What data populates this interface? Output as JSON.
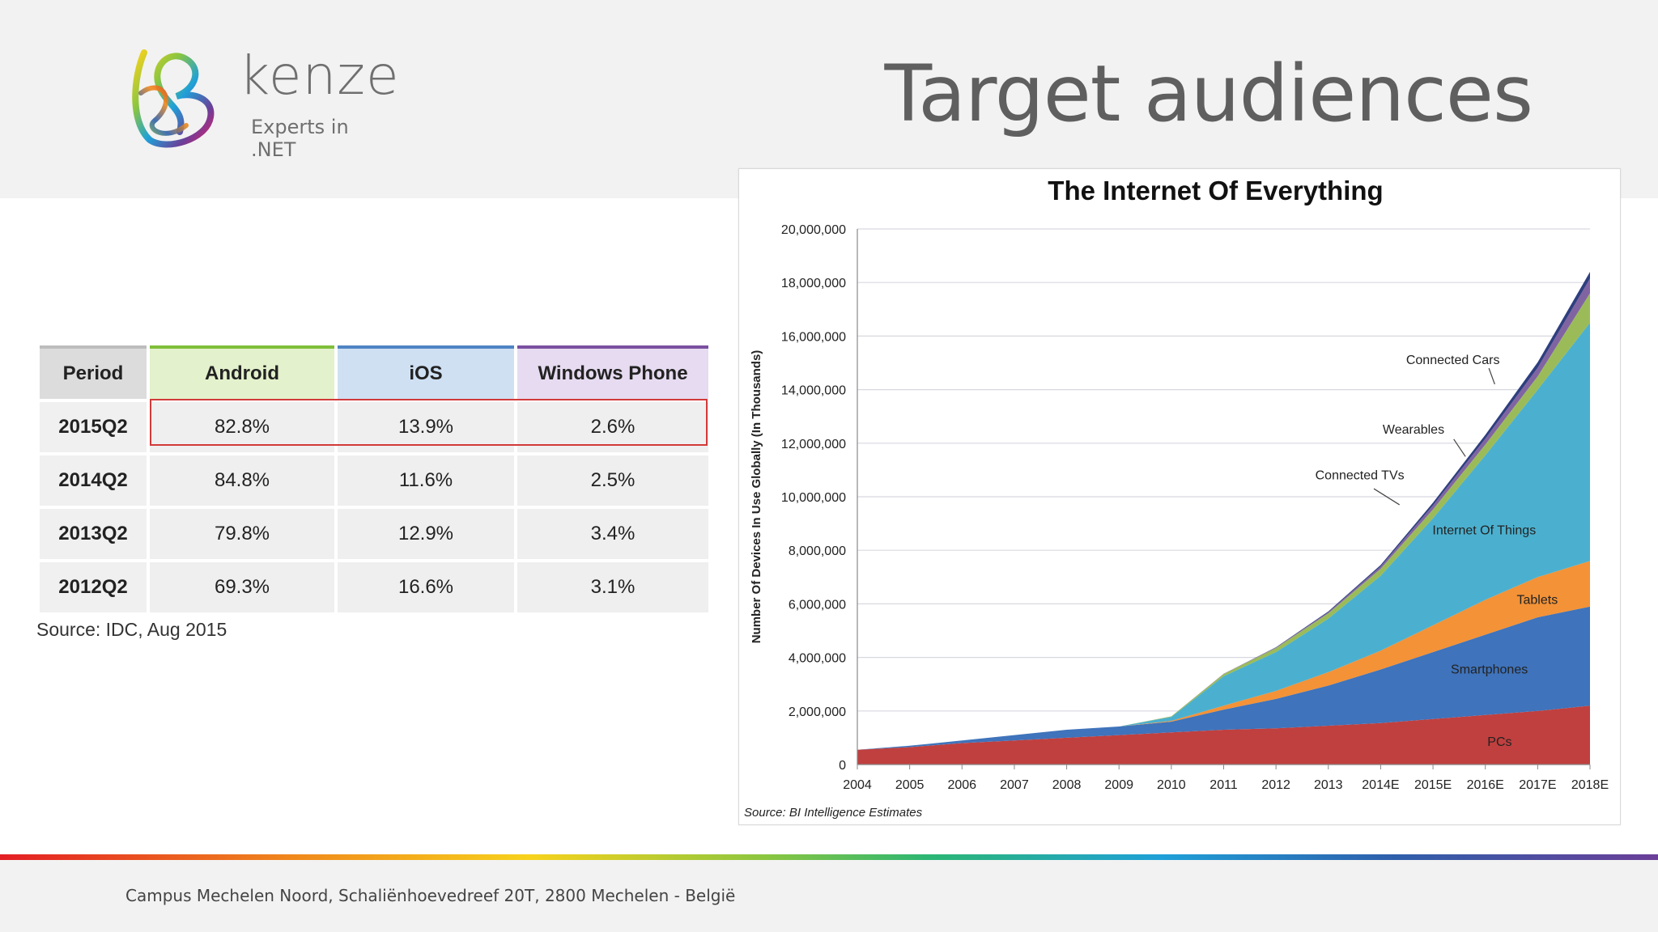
{
  "logo": {
    "word": "kenze",
    "tagline": "Experts in .NET"
  },
  "slide_title": "Target audiences",
  "table": {
    "headers": [
      "Period",
      "Android",
      "iOS",
      "Windows Phone"
    ],
    "rows": [
      [
        "2015Q2",
        "82.8%",
        "13.9%",
        "2.6%"
      ],
      [
        "2014Q2",
        "84.8%",
        "11.6%",
        "2.5%"
      ],
      [
        "2013Q2",
        "79.8%",
        "12.9%",
        "3.4%"
      ],
      [
        "2012Q2",
        "69.3%",
        "16.6%",
        "3.1%"
      ]
    ],
    "source": "Source: IDC, Aug 2015"
  },
  "chart_data": {
    "type": "area",
    "stacked": true,
    "title": "The Internet Of Everything",
    "ylabel": "Number Of Devices In Use Globally (In Thousands)",
    "xlabel": "",
    "source": "Source: BI Intelligence Estimates",
    "categories": [
      "2004",
      "2005",
      "2006",
      "2007",
      "2008",
      "2009",
      "2010",
      "2011",
      "2012",
      "2013",
      "2014E",
      "2015E",
      "2016E",
      "2017E",
      "2018E"
    ],
    "ylim": [
      0,
      20000000
    ],
    "yticks": [
      0,
      2000000,
      4000000,
      6000000,
      8000000,
      10000000,
      12000000,
      14000000,
      16000000,
      18000000,
      20000000
    ],
    "ytick_labels": [
      "0",
      "2,000,000",
      "4,000,000",
      "6,000,000",
      "8,000,000",
      "10,000,000",
      "12,000,000",
      "14,000,000",
      "16,000,000",
      "18,000,000",
      "20,000,000"
    ],
    "grid": true,
    "series": [
      {
        "name": "PCs",
        "color": "#c0403f",
        "values": [
          550000,
          650000,
          800000,
          900000,
          1000000,
          1100000,
          1200000,
          1300000,
          1350000,
          1450000,
          1550000,
          1700000,
          1850000,
          2000000,
          2200000
        ]
      },
      {
        "name": "Smartphones",
        "color": "#3f73bb",
        "values": [
          0,
          50000,
          100000,
          200000,
          300000,
          320000,
          400000,
          750000,
          1100000,
          1500000,
          2000000,
          2500000,
          3000000,
          3500000,
          3700000
        ]
      },
      {
        "name": "Tablets",
        "color": "#f39237",
        "values": [
          0,
          0,
          0,
          0,
          0,
          0,
          30000,
          150000,
          300000,
          500000,
          700000,
          1000000,
          1300000,
          1500000,
          1700000
        ]
      },
      {
        "name": "Internet Of Things",
        "color": "#4bb0cf",
        "values": [
          0,
          0,
          0,
          0,
          0,
          0,
          150000,
          1100000,
          1450000,
          2000000,
          2800000,
          4000000,
          5400000,
          7000000,
          8900000
        ]
      },
      {
        "name": "Connected TVs",
        "color": "#9bbb59",
        "values": [
          0,
          0,
          0,
          0,
          0,
          0,
          20000,
          80000,
          150000,
          200000,
          260000,
          330000,
          400000,
          500000,
          1100000
        ]
      },
      {
        "name": "Wearables",
        "color": "#8064a2",
        "values": [
          0,
          0,
          0,
          0,
          0,
          0,
          0,
          10000,
          20000,
          40000,
          90000,
          150000,
          220000,
          320000,
          550000
        ]
      },
      {
        "name": "Connected Cars",
        "color": "#2e3f7f",
        "values": [
          0,
          0,
          0,
          0,
          0,
          0,
          0,
          0,
          10000,
          30000,
          50000,
          100000,
          140000,
          200000,
          250000
        ]
      }
    ],
    "labels": {
      "pcs": "PCs",
      "smartphones": "Smartphones",
      "tablets": "Tablets",
      "iot": "Internet Of Things",
      "tvs": "Connected TVs",
      "wearables": "Wearables",
      "cars": "Connected Cars"
    }
  },
  "footer": "Campus Mechelen Noord, Schaliënhoevedreef 20T, 2800 Mechelen - België"
}
